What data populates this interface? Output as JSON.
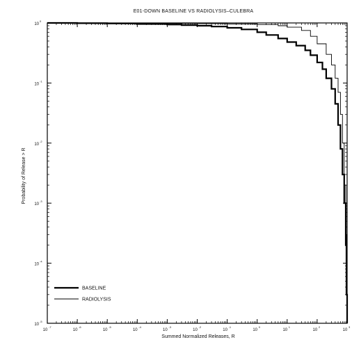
{
  "chart_data": {
    "type": "line",
    "title": "E01-DOWN  BASELINE VS RADIOLYSIS–CULEBRA",
    "xlabel": "Summed Normalized Releases, R",
    "ylabel": "Probability of Release > R",
    "xscale": "log",
    "yscale": "log",
    "xlim": [
      1e-07,
      1000.0
    ],
    "ylim": [
      1e-05,
      1
    ],
    "x_ticks": [
      {
        "value": 1e-07,
        "base": "10",
        "exp": "-7"
      },
      {
        "value": 1e-06,
        "base": "10",
        "exp": "-6"
      },
      {
        "value": 1e-05,
        "base": "10",
        "exp": "-5"
      },
      {
        "value": 0.0001,
        "base": "10",
        "exp": "-4"
      },
      {
        "value": 0.001,
        "base": "10",
        "exp": "-3"
      },
      {
        "value": 0.01,
        "base": "10",
        "exp": "-2"
      },
      {
        "value": 0.1,
        "base": "10",
        "exp": "-1"
      },
      {
        "value": 1,
        "base": "10",
        "exp": "0"
      },
      {
        "value": 10.0,
        "base": "10",
        "exp": "1"
      },
      {
        "value": 100.0,
        "base": "10",
        "exp": "2"
      },
      {
        "value": 1000.0,
        "base": "10",
        "exp": "3"
      }
    ],
    "y_ticks": [
      {
        "value": 1,
        "base": "10",
        "exp": "0"
      },
      {
        "value": 0.1,
        "base": "10",
        "exp": "-1"
      },
      {
        "value": 0.01,
        "base": "10",
        "exp": "-2"
      },
      {
        "value": 0.001,
        "base": "10",
        "exp": "-3"
      },
      {
        "value": 0.0001,
        "base": "10",
        "exp": "-4"
      },
      {
        "value": 1e-05,
        "base": "10",
        "exp": "-5"
      }
    ],
    "grid": false,
    "legend_position": "bottom-left",
    "series": [
      {
        "name": "BASELINE",
        "color": "#000000",
        "line": "thick",
        "x": [
          1e-07,
          1e-06,
          1e-05,
          0.0001,
          0.001,
          0.003,
          0.01,
          0.03,
          0.1,
          0.3,
          1,
          2,
          5,
          10,
          20,
          40,
          60,
          100,
          150,
          200,
          300,
          400,
          500,
          600,
          700,
          800,
          900,
          950,
          1000
        ],
        "y": [
          1,
          0.99,
          0.98,
          0.96,
          0.94,
          0.92,
          0.9,
          0.87,
          0.83,
          0.78,
          0.7,
          0.63,
          0.55,
          0.48,
          0.42,
          0.35,
          0.29,
          0.22,
          0.17,
          0.12,
          0.08,
          0.045,
          0.02,
          0.008,
          0.003,
          0.001,
          0.0002,
          3e-05,
          1e-05
        ]
      },
      {
        "name": "RADIOLYSIS",
        "color": "#000000",
        "line": "thin",
        "x": [
          1e-07,
          1e-06,
          1e-05,
          0.0001,
          0.001,
          0.01,
          0.1,
          1,
          5,
          10,
          30,
          60,
          100,
          200,
          300,
          400,
          500,
          600,
          700,
          800,
          900,
          950,
          1000
        ],
        "y": [
          1,
          1,
          1,
          0.99,
          0.98,
          0.97,
          0.96,
          0.94,
          0.9,
          0.85,
          0.75,
          0.6,
          0.45,
          0.3,
          0.2,
          0.12,
          0.07,
          0.03,
          0.01,
          0.002,
          0.0003,
          4e-05,
          1e-05
        ]
      }
    ]
  }
}
